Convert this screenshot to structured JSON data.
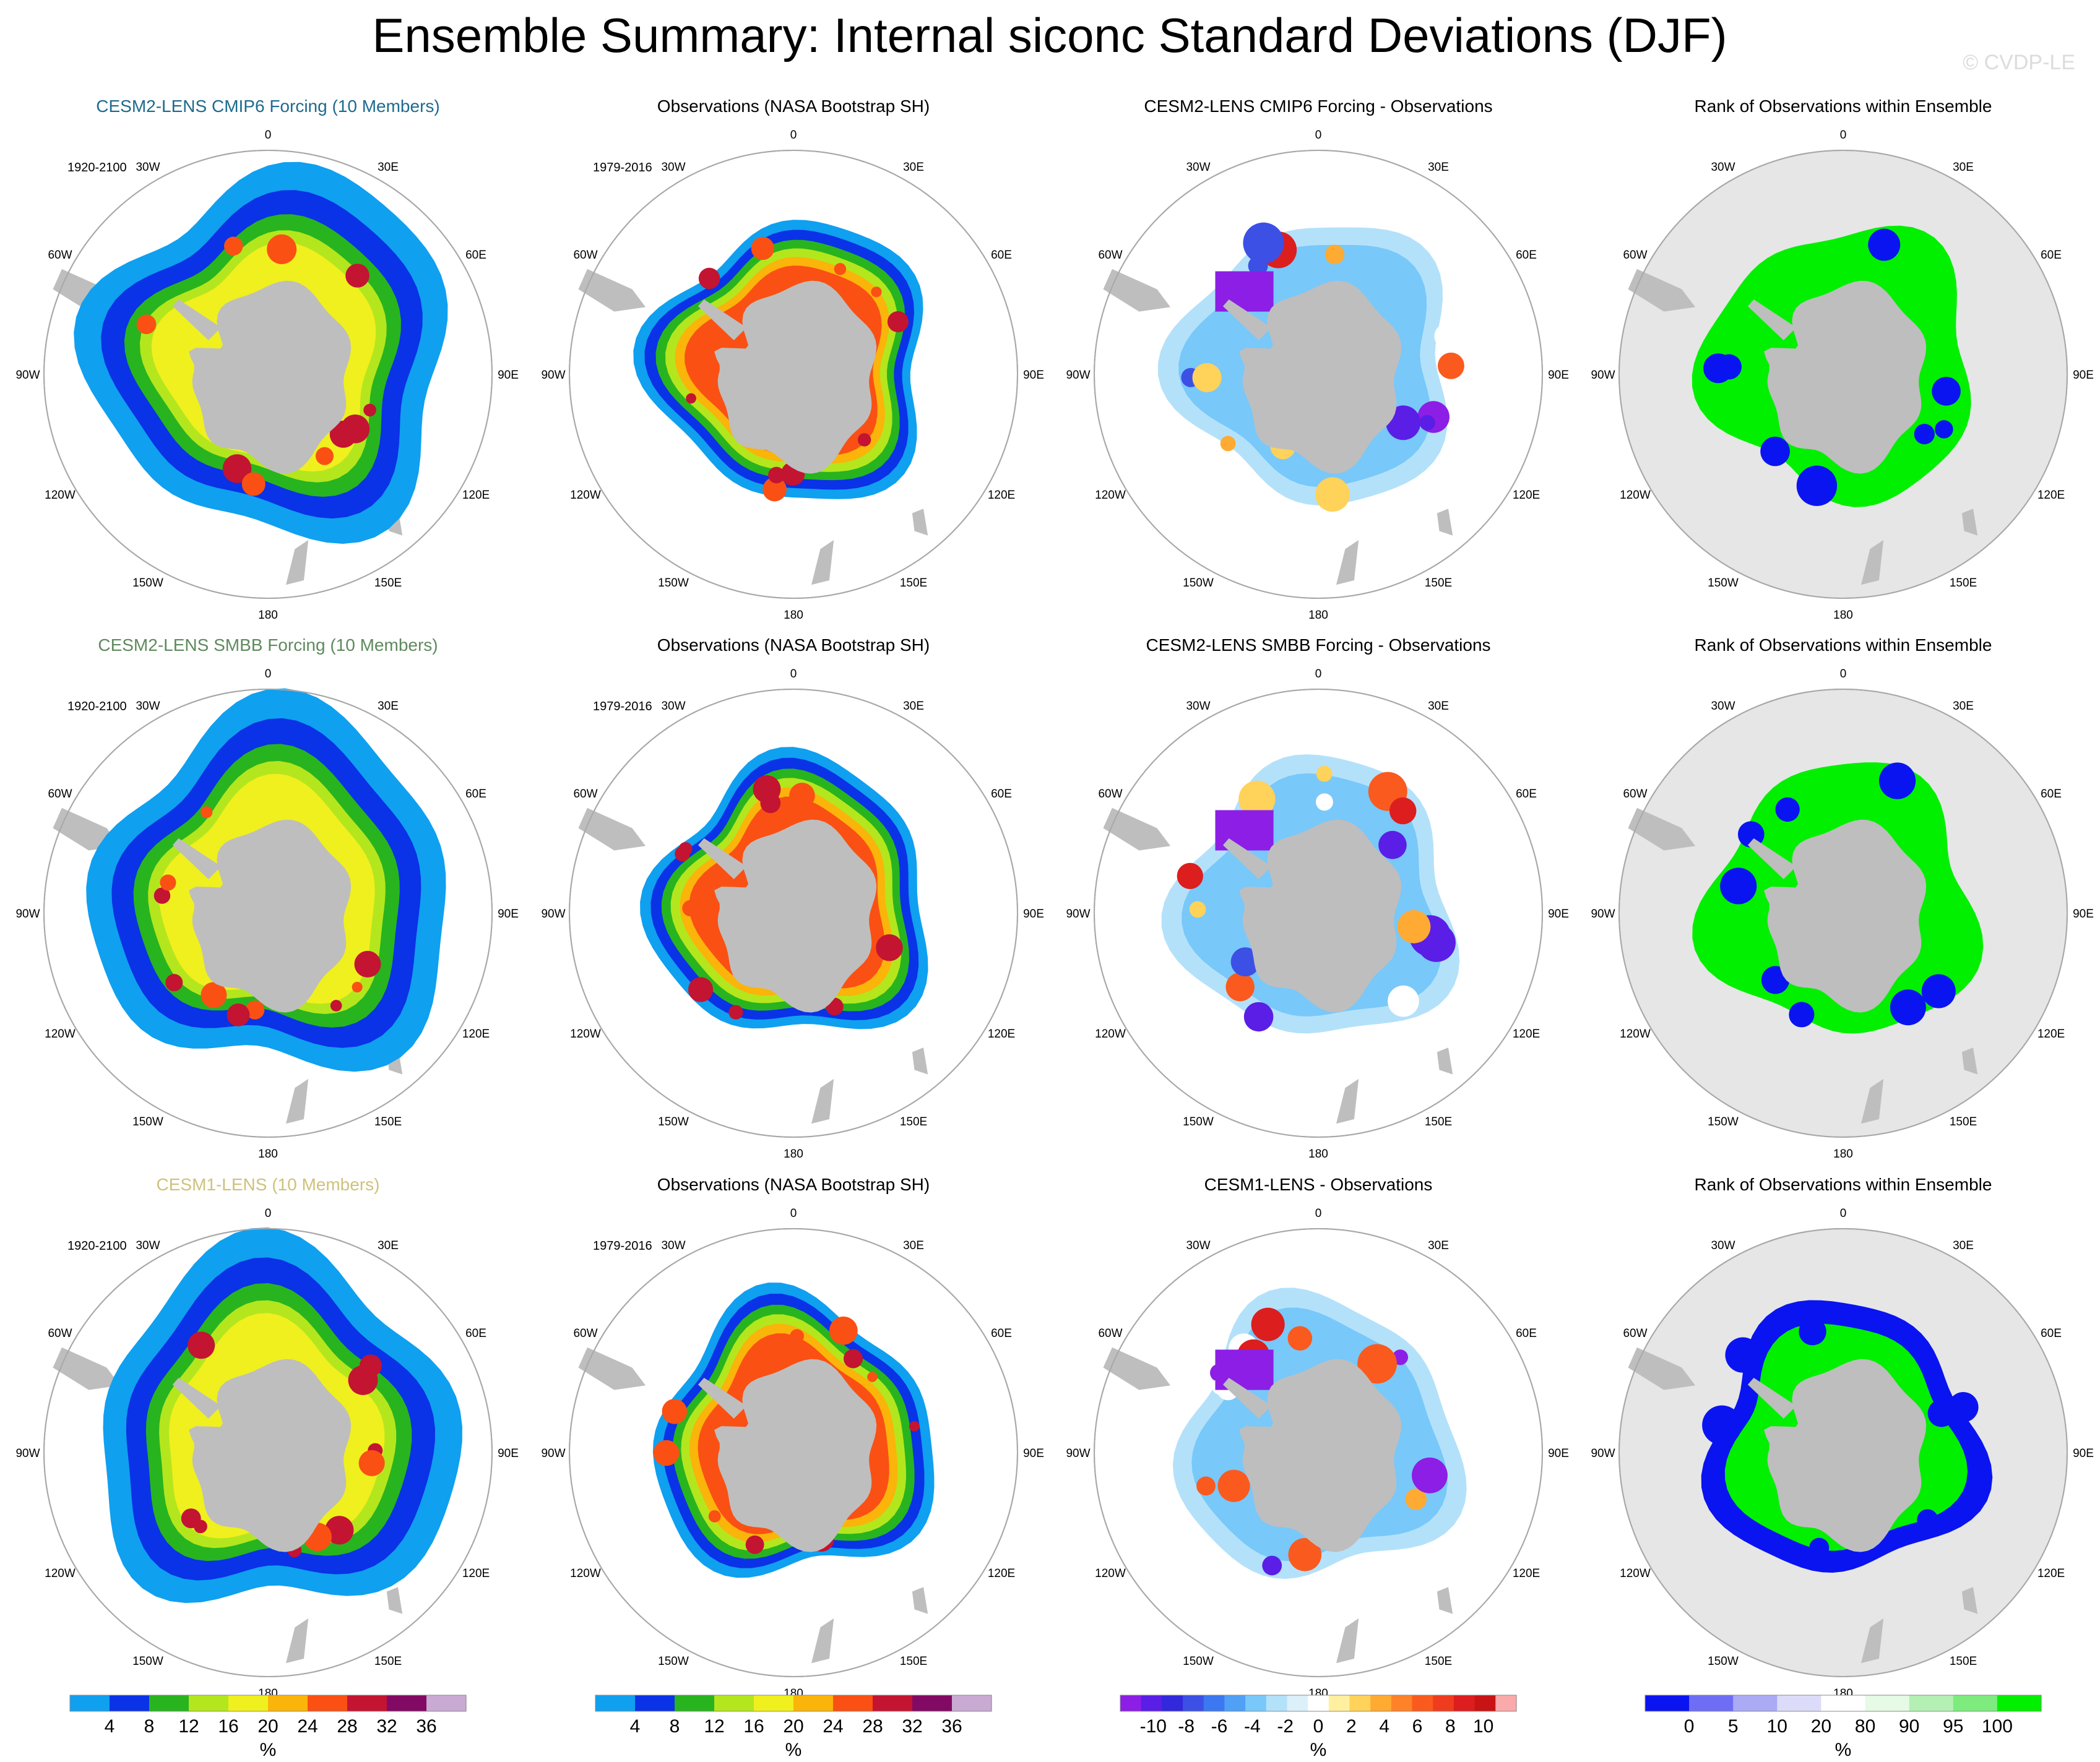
{
  "title": "Ensemble Summary: Internal siconc Standard Deviations (DJF)",
  "watermark": "© CVDP-LE",
  "colors": {
    "title_row1": "#1d6b8e",
    "title_row2": "#5e8a5e",
    "title_row3": "#cfc27a",
    "title_default": "#000000",
    "land": "#bebebe",
    "ocean_rank": "#e6e6e6",
    "circle": "#a8a8a8"
  },
  "rows": [
    {
      "panels": [
        {
          "title": "CESM2-LENS CMIP6 Forcing (10 Members)",
          "period": "1920-2100",
          "kind": "model"
        },
        {
          "title": "Observations (NASA Bootstrap SH)",
          "period": "1979-2016",
          "kind": "obs"
        },
        {
          "title": "CESM2-LENS CMIP6 Forcing - Observations",
          "period": "",
          "kind": "diff"
        },
        {
          "title": "Rank of Observations within Ensemble",
          "period": "",
          "kind": "rank"
        }
      ]
    },
    {
      "panels": [
        {
          "title": "CESM2-LENS SMBB Forcing (10 Members)",
          "period": "1920-2100",
          "kind": "model"
        },
        {
          "title": "Observations (NASA Bootstrap SH)",
          "period": "1979-2016",
          "kind": "obs"
        },
        {
          "title": "CESM2-LENS SMBB Forcing - Observations",
          "period": "",
          "kind": "diff"
        },
        {
          "title": "Rank of Observations within Ensemble",
          "period": "",
          "kind": "rank"
        }
      ]
    },
    {
      "panels": [
        {
          "title": "CESM1-LENS (10 Members)",
          "period": "1920-2100",
          "kind": "model"
        },
        {
          "title": "Observations (NASA Bootstrap SH)",
          "period": "1979-2016",
          "kind": "obs"
        },
        {
          "title": "CESM1-LENS - Observations",
          "period": "",
          "kind": "diff"
        },
        {
          "title": "Rank of Observations within Ensemble",
          "period": "",
          "kind": "rank"
        }
      ]
    }
  ],
  "lon_labels": [
    "0",
    "30E",
    "60E",
    "90E",
    "120E",
    "150E",
    "180",
    "150W",
    "120W",
    "90W",
    "60W",
    "30W"
  ],
  "chart_data": {
    "type": "heatmap",
    "projection": "south polar stereographic",
    "variable": "siconc",
    "season": "DJF",
    "colorbars": [
      {
        "name": "stddev",
        "label": "%",
        "ticks": [
          "4",
          "8",
          "12",
          "16",
          "20",
          "24",
          "28",
          "32",
          "36"
        ],
        "colors": [
          "#0fa0f0",
          "#0a32e6",
          "#28b41e",
          "#b4e61e",
          "#f0f01e",
          "#fab40a",
          "#fa5014",
          "#c31432",
          "#820a64",
          "#c8aad2"
        ]
      },
      {
        "name": "stddev",
        "label": "%",
        "ticks": [
          "4",
          "8",
          "12",
          "16",
          "20",
          "24",
          "28",
          "32",
          "36"
        ],
        "colors": [
          "#0fa0f0",
          "#0a32e6",
          "#28b41e",
          "#b4e61e",
          "#f0f01e",
          "#fab40a",
          "#fa5014",
          "#c31432",
          "#820a64",
          "#c8aad2"
        ]
      },
      {
        "name": "difference",
        "label": "%",
        "ticks": [
          "-10",
          "-8",
          "-6",
          "-4",
          "-2",
          "0",
          "2",
          "4",
          "6",
          "8",
          "10"
        ],
        "colors": [
          "#8c1ee6",
          "#5a1ee6",
          "#3228dc",
          "#3c50e6",
          "#3c78f0",
          "#50a0f5",
          "#78c8fa",
          "#b4e1fa",
          "#dcf0fa",
          "#ffffff",
          "#fff0a0",
          "#ffd25a",
          "#ffaa32",
          "#ff8228",
          "#fa5a1e",
          "#f03c1e",
          "#dc1e1e",
          "#c81414",
          "#faaaaa"
        ]
      },
      {
        "name": "rank",
        "label": "%",
        "ticks": [
          "0",
          "5",
          "10",
          "20",
          "80",
          "90",
          "95",
          "100"
        ],
        "colors": [
          "#0a14f0",
          "#6e6ef5",
          "#aaaaf5",
          "#dcdcfa",
          "#ffffff",
          "#e6fae6",
          "#b4f0b4",
          "#7deb7d",
          "#00f000"
        ]
      }
    ]
  }
}
